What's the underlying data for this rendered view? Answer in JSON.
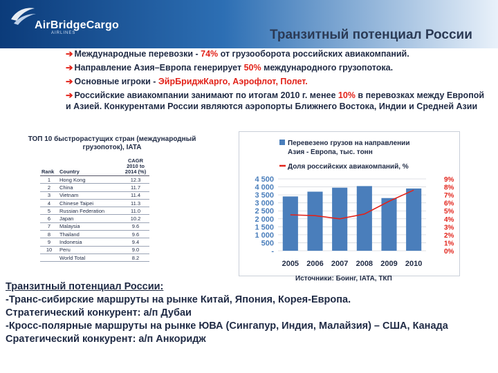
{
  "logo": {
    "name": "AirBridgeCargo",
    "subtitle": "AIRLINES"
  },
  "title": "Транзитный потенциал России",
  "bullets": {
    "b1_pre": "Международные перевозки  - ",
    "b1_red": "74%",
    "b1_post": " от грузооборота российских авиакомпаний.",
    "b2_pre": "Направление Азия–Европа  генерирует ",
    "b2_red": "50%",
    "b2_post": " международного грузопотока.",
    "b3_pre": "Основные игроки - ",
    "b3_red": "ЭйрБриджКарго, Аэрофлот, Полет.",
    "b4_pre": "Российские авиакомпании занимают по итогам 2010 г. менее ",
    "b4_red": "10%",
    "b4_post": " в перевозках между Европой и Азией. Конкурентами России являются аэропорты Ближнего Востока, Индии и Средней Азии"
  },
  "table": {
    "title": "ТОП 10 быстрорастущих стран (международный грузопоток), IATA",
    "headers": {
      "rank": "Rank",
      "country": "Country",
      "cagr": "CAGR 2010 to 2014 (%)"
    },
    "rows": [
      {
        "rank": "1",
        "country": "Hong Kong",
        "cagr": "12.3"
      },
      {
        "rank": "2",
        "country": "China",
        "cagr": "11.7"
      },
      {
        "rank": "3",
        "country": "Vietnam",
        "cagr": "11.4"
      },
      {
        "rank": "4",
        "country": "Chinese Taipei",
        "cagr": "11.3"
      },
      {
        "rank": "5",
        "country": "Russian Federation",
        "cagr": "11.0"
      },
      {
        "rank": "6",
        "country": "Japan",
        "cagr": "10.2"
      },
      {
        "rank": "7",
        "country": "Malaysia",
        "cagr": "9.6"
      },
      {
        "rank": "8",
        "country": "Thailand",
        "cagr": "9.6"
      },
      {
        "rank": "9",
        "country": "Indonesia",
        "cagr": "9.4"
      },
      {
        "rank": "10",
        "country": "Peru",
        "cagr": "9.0"
      },
      {
        "rank": "",
        "country": "World Total",
        "cagr": "8.2"
      }
    ]
  },
  "chart_data": {
    "type": "bar",
    "categories": [
      "2005",
      "2006",
      "2007",
      "2008",
      "2009",
      "2010"
    ],
    "series": [
      {
        "name": "Перевезено грузов на направлении Азия - Европа, тыс. тонн",
        "type": "bar",
        "axis": "left",
        "values": [
          3400,
          3700,
          3950,
          4050,
          3300,
          3900
        ]
      },
      {
        "name": "Доля российских авиакомпаний, %",
        "type": "line",
        "axis": "right",
        "values": [
          4.5,
          4.4,
          4.0,
          4.6,
          6.2,
          7.6
        ]
      }
    ],
    "y_left": {
      "ticks": [
        "-",
        "500",
        "1 000",
        "1 500",
        "2 000",
        "2 500",
        "3 000",
        "3 500",
        "4 000",
        "4 500"
      ],
      "ylim": [
        0,
        4500
      ]
    },
    "y_right": {
      "ticks": [
        "0%",
        "1%",
        "2%",
        "3%",
        "4%",
        "5%",
        "6%",
        "7%",
        "8%",
        "9%"
      ],
      "ylim": [
        0,
        9
      ]
    },
    "legend_placement": "top",
    "grid": true,
    "colors": {
      "bar": "#4a7ebb",
      "line": "#e2231a",
      "left_ticks": "#4a7ebb",
      "right_ticks": "#e2231a"
    }
  },
  "source": "Источники: Боинг, IATA, ТКП",
  "bottom": {
    "heading": "Транзитный потенциал России:",
    "line1": "-Транс-сибирские маршруты на рынке Китай, Япония, Корея-Европа.",
    "line2": "Стратегический конкурент: а/п Дубаи",
    "line3": "-Кросс-полярные маршруты на рынке ЮВА (Сингапур, Индия, Малайзия) – США, Канада",
    "line4": "Сратегический конкурент: а/п Анкоридж"
  }
}
